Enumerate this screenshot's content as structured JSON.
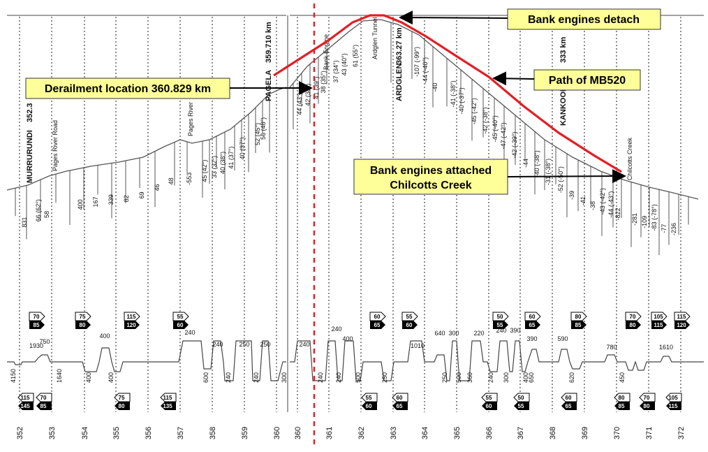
{
  "stations": [
    {
      "name": "MURRURUNDI",
      "km": "352.3"
    },
    {
      "name": "PAGELA",
      "km": "359.710 km"
    },
    {
      "name": "ARDGLEN",
      "km": "363.27 km"
    },
    {
      "name": "KANKOOL",
      "km": "333 km"
    }
  ],
  "place_labels": [
    "Pages River Road",
    "Pages River",
    "Ardglen Tunnel",
    "Chilcotts Creek",
    "Bank Engine"
  ],
  "callouts": {
    "bank_detach": "Bank engines detach",
    "path": "Path of MB520",
    "derailment": "Derailment location 360.829 km",
    "bank_attach_line1": "Bank engines attached",
    "bank_attach_line2": "Chilcotts Creek"
  },
  "gradients": [
    "831",
    "66 (62°)",
    "58",
    "400",
    "167",
    "339",
    "82",
    "69",
    "46",
    "48",
    "-553",
    "45 (42°)",
    "33 (32°)",
    "40 (38°)",
    "41 (37°)",
    "40 (37°)",
    "52 (45°)",
    "56 (48°)",
    "44 (43°)",
    "42 (38°)",
    "41 (39°)",
    "38 (35°)",
    "37 (34°)",
    "43 (40°)",
    "61 (55°)",
    "-107 (-99°)",
    "-44 (-40°)",
    "-40",
    "-41 (-38°)",
    "-40 (-37°)",
    "-45 (-42°)",
    "-42 (-38°)",
    "-45 (-40°)",
    "-47 (-42°)",
    "-42 (-39°)",
    "-44",
    "-40 (-38°)",
    "-31 (-38°)",
    "-52 (-50°)",
    "-39",
    "-41",
    "-38",
    "-43 (-42°)",
    "-44 (-43°)",
    "-822",
    "-281",
    "-109",
    "-83 (-78°)",
    "-77",
    "-236"
  ],
  "speed_signs_top": [
    {
      "a": "70",
      "b": "85"
    },
    {
      "a": "75",
      "b": "80"
    },
    {
      "a": "115",
      "b": "120"
    },
    {
      "a": "55",
      "b": "60"
    },
    {
      "a": "60",
      "b": "65"
    },
    {
      "a": "55",
      "b": "60"
    },
    {
      "a": "50",
      "b": "55"
    },
    {
      "a": "60",
      "b": "65"
    },
    {
      "a": "80",
      "b": "85"
    },
    {
      "a": "70",
      "b": "80"
    },
    {
      "a": "105",
      "b": "115"
    },
    {
      "a": "115",
      "b": "120"
    }
  ],
  "speed_signs_bottom": [
    {
      "a": "115",
      "b": "145"
    },
    {
      "a": "70",
      "b": "85"
    },
    {
      "a": "75",
      "b": "80"
    },
    {
      "a": "115",
      "b": "135"
    },
    {
      "a": "55",
      "b": "60"
    },
    {
      "a": "60",
      "b": "65"
    },
    {
      "a": "55",
      "b": "60"
    },
    {
      "a": "50",
      "b": "55"
    },
    {
      "a": "60",
      "b": "65"
    },
    {
      "a": "80",
      "b": "85"
    },
    {
      "a": "70",
      "b": "80"
    },
    {
      "a": "105",
      "b": "115"
    }
  ],
  "curve_values_top": [
    "1930",
    "750",
    "400",
    "240",
    "240",
    "250",
    "250",
    "240",
    "240",
    "400",
    "1010",
    "640",
    "300",
    "220",
    "240",
    "390",
    "390",
    "590",
    "780",
    "1610"
  ],
  "curve_values_bottom": [
    "4150",
    "1640",
    "400",
    "400",
    "600",
    "240",
    "240",
    "300",
    "240",
    "240",
    "500",
    "250",
    "250",
    "500",
    "360",
    "240",
    "300",
    "400",
    "650",
    "620",
    "450"
  ],
  "km_left": [
    "352",
    "353",
    "354",
    "355",
    "356",
    "357",
    "358",
    "359",
    "360"
  ],
  "km_right": [
    "360",
    "361",
    "362",
    "363",
    "364",
    "365",
    "366",
    "367",
    "368",
    "369",
    "370",
    "371",
    "372"
  ],
  "colors": {
    "profile_line": "#555555",
    "path_red": "#e31e24",
    "callout_fill": "#ffff99",
    "dashed_red": "#e31e24"
  }
}
